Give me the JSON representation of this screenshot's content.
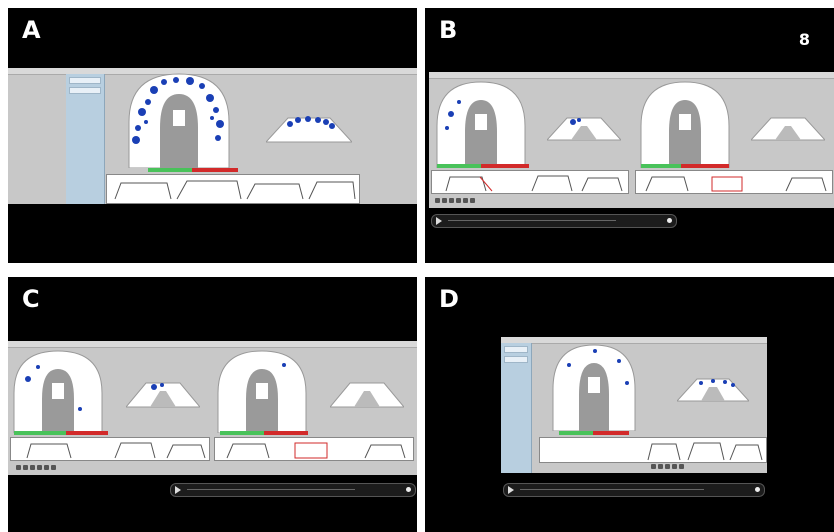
{
  "figure": {
    "page_number": "8",
    "panels": [
      {
        "id": "A",
        "label": "A",
        "layout": "single",
        "has_side_list": true,
        "has_player": false
      },
      {
        "id": "B",
        "label": "B",
        "layout": "dual",
        "has_side_list": false,
        "has_player": true
      },
      {
        "id": "C",
        "label": "C",
        "layout": "dual",
        "has_side_list": false,
        "has_player": true
      },
      {
        "id": "D",
        "label": "D",
        "layout": "single",
        "has_side_list": true,
        "has_player": true
      }
    ]
  },
  "colors": {
    "panel_bg": "#000000",
    "screen_bg": "#c8c8c8",
    "contact_points": "#1a3fb5",
    "force_bar_green": "#49c25a",
    "force_bar_red": "#d22a2a",
    "side_list": "#b8cfe0"
  },
  "icons": [
    "play-icon",
    "timeline-knob-icon",
    "dental-arch-icon"
  ]
}
